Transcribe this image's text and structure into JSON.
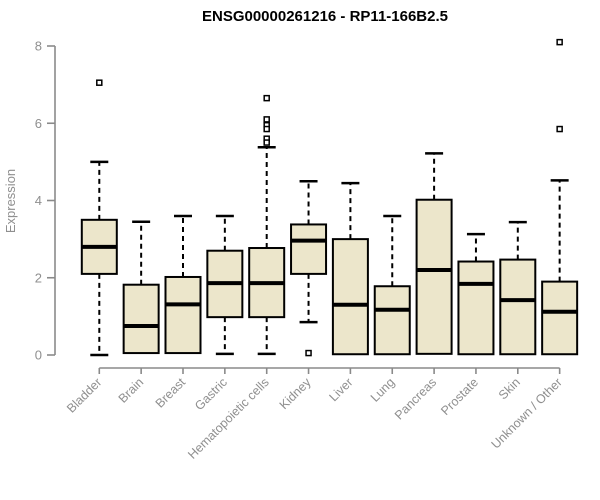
{
  "chart_data": {
    "type": "boxplot",
    "title": "ENSG00000261216 - RP11-166B2.5",
    "xlabel": "",
    "ylabel": "Expression",
    "ylim": [
      0,
      8.3
    ],
    "yticks": [
      0,
      2,
      4,
      6,
      8
    ],
    "grid": false,
    "legend": false,
    "x_label_rotation": 45,
    "categories": [
      "Bladder",
      "Brain",
      "Breast",
      "Gastric",
      "Hematopoietic cells",
      "Kidney",
      "Liver",
      "Lung",
      "Pancreas",
      "Prostate",
      "Skin",
      "Unknown / Other"
    ],
    "boxes": [
      {
        "category": "Bladder",
        "whisker_low": 0.0,
        "q1": 2.1,
        "median": 2.8,
        "q3": 3.5,
        "whisker_high": 5.0,
        "outliers": [
          7.05
        ]
      },
      {
        "category": "Brain",
        "whisker_low": 0.05,
        "q1": 0.05,
        "median": 0.75,
        "q3": 1.82,
        "whisker_high": 3.45,
        "outliers": []
      },
      {
        "category": "Breast",
        "whisker_low": 0.05,
        "q1": 0.05,
        "median": 1.31,
        "q3": 2.02,
        "whisker_high": 3.6,
        "outliers": []
      },
      {
        "category": "Gastric",
        "whisker_low": 0.03,
        "q1": 0.98,
        "median": 1.86,
        "q3": 2.7,
        "whisker_high": 3.6,
        "outliers": []
      },
      {
        "category": "Hematopoietic cells",
        "whisker_low": 0.03,
        "q1": 0.98,
        "median": 1.86,
        "q3": 2.77,
        "whisker_high": 5.38,
        "outliers": [
          6.65,
          6.1,
          5.95,
          5.85,
          5.6,
          5.5
        ]
      },
      {
        "category": "Kidney",
        "whisker_low": 0.85,
        "q1": 2.1,
        "median": 2.96,
        "q3": 3.38,
        "whisker_high": 4.5,
        "outliers": [
          0.05
        ]
      },
      {
        "category": "Liver",
        "whisker_low": 0.02,
        "q1": 0.02,
        "median": 1.3,
        "q3": 3.0,
        "whisker_high": 4.45,
        "outliers": []
      },
      {
        "category": "Lung",
        "whisker_low": 0.02,
        "q1": 0.02,
        "median": 1.17,
        "q3": 1.78,
        "whisker_high": 3.6,
        "outliers": []
      },
      {
        "category": "Pancreas",
        "whisker_low": 0.03,
        "q1": 0.03,
        "median": 2.2,
        "q3": 4.02,
        "whisker_high": 5.22,
        "outliers": []
      },
      {
        "category": "Prostate",
        "whisker_low": 0.02,
        "q1": 0.02,
        "median": 1.84,
        "q3": 2.42,
        "whisker_high": 3.13,
        "outliers": []
      },
      {
        "category": "Skin",
        "whisker_low": 0.02,
        "q1": 0.02,
        "median": 1.42,
        "q3": 2.47,
        "whisker_high": 3.44,
        "outliers": []
      },
      {
        "category": "Unknown / Other",
        "whisker_low": 0.02,
        "q1": 0.02,
        "median": 1.12,
        "q3": 1.9,
        "whisker_high": 4.52,
        "outliers": [
          8.1,
          5.85
        ]
      }
    ],
    "colors": {
      "box_fill": "#ECE6CB",
      "box_stroke": "#000000",
      "median": "#000000",
      "whisker": "#000000",
      "outlier_stroke": "#000000",
      "outlier_fill": "#ffffff",
      "axis": "#8a8a8a",
      "tick_label": "#8f8f8f",
      "title": "#000000",
      "background": "#ffffff"
    }
  }
}
